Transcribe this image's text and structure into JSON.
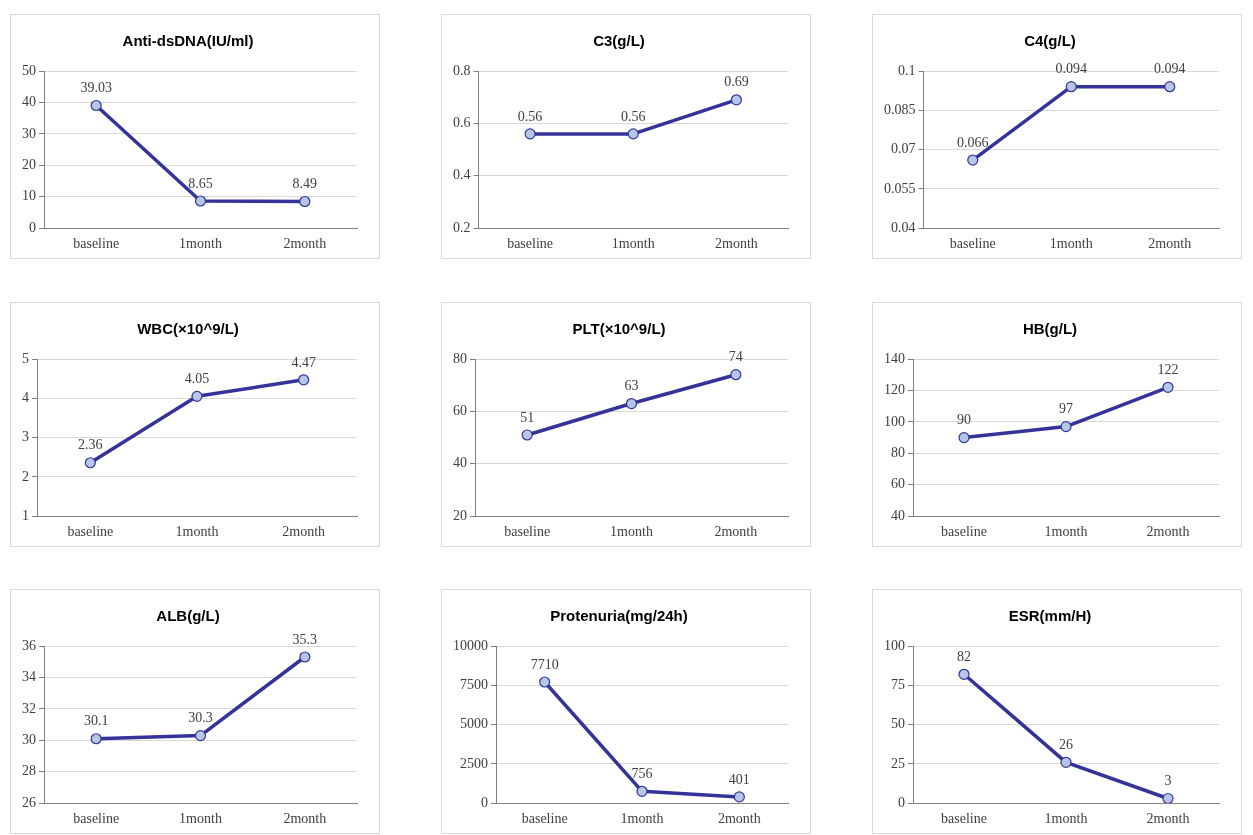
{
  "chart_data": [
    {
      "type": "line",
      "title": "Anti-dsDNA(IU/ml)",
      "categories": [
        "baseline",
        "1month",
        "2month"
      ],
      "series": [
        {
          "color": "#333399",
          "values": [
            39.03,
            8.65,
            8.49
          ]
        }
      ],
      "ylim": [
        0,
        50
      ],
      "yticks": [
        0,
        10,
        20,
        30,
        40,
        50
      ],
      "grid": "y",
      "legend": false,
      "marker": "circle",
      "line_style": "solid",
      "data_labels": true
    },
    {
      "type": "line",
      "title": "C3(g/L)",
      "categories": [
        "baseline",
        "1month",
        "2month"
      ],
      "series": [
        {
          "color": "#333399",
          "values": [
            0.56,
            0.56,
            0.69
          ]
        }
      ],
      "ylim": [
        0.2,
        0.8
      ],
      "yticks": [
        0.2,
        0.4,
        0.6,
        0.8
      ],
      "grid": "y",
      "legend": false,
      "marker": "circle",
      "line_style": "solid",
      "data_labels": true
    },
    {
      "type": "line",
      "title": "C4(g/L)",
      "categories": [
        "baseline",
        "1month",
        "2month"
      ],
      "series": [
        {
          "color": "#333399",
          "values": [
            0.066,
            0.094,
            0.094
          ]
        }
      ],
      "ylim": [
        0.04,
        0.1
      ],
      "yticks": [
        0.04,
        0.055,
        0.07,
        0.085,
        0.1
      ],
      "grid": "y",
      "legend": false,
      "marker": "circle",
      "line_style": "solid",
      "data_labels": true
    },
    {
      "type": "line",
      "title": "WBC(×10^9/L)",
      "categories": [
        "baseline",
        "1month",
        "2month"
      ],
      "series": [
        {
          "color": "#333399",
          "values": [
            2.36,
            4.05,
            4.47
          ]
        }
      ],
      "ylim": [
        1,
        5
      ],
      "yticks": [
        1,
        2,
        3,
        4,
        5
      ],
      "grid": "y",
      "legend": false,
      "marker": "circle",
      "line_style": "solid",
      "data_labels": true
    },
    {
      "type": "line",
      "title": "PLT(×10^9/L)",
      "categories": [
        "baseline",
        "1month",
        "2month"
      ],
      "series": [
        {
          "color": "#333399",
          "values": [
            51,
            63,
            74
          ]
        }
      ],
      "ylim": [
        20,
        80
      ],
      "yticks": [
        20,
        40,
        60,
        80
      ],
      "grid": "y",
      "legend": false,
      "marker": "circle",
      "line_style": "solid",
      "data_labels": true
    },
    {
      "type": "line",
      "title": "HB(g/L)",
      "categories": [
        "baseline",
        "1month",
        "2month"
      ],
      "series": [
        {
          "color": "#333399",
          "values": [
            90,
            97,
            122
          ]
        }
      ],
      "ylim": [
        40,
        140
      ],
      "yticks": [
        40,
        60,
        80,
        100,
        120,
        140
      ],
      "grid": "y",
      "legend": false,
      "marker": "circle",
      "line_style": "solid",
      "data_labels": true
    },
    {
      "type": "line",
      "title": "ALB(g/L)",
      "categories": [
        "baseline",
        "1month",
        "2month"
      ],
      "series": [
        {
          "color": "#333399",
          "values": [
            30.1,
            30.3,
            35.3
          ]
        }
      ],
      "ylim": [
        26,
        36
      ],
      "yticks": [
        26,
        28,
        30,
        32,
        34,
        36
      ],
      "grid": "y",
      "legend": false,
      "marker": "circle",
      "line_style": "solid",
      "data_labels": true
    },
    {
      "type": "line",
      "title": "Protenuria(mg/24h)",
      "categories": [
        "baseline",
        "1month",
        "2month"
      ],
      "series": [
        {
          "color": "#333399",
          "values": [
            7710,
            756,
            401
          ]
        }
      ],
      "ylim": [
        0,
        10000
      ],
      "yticks": [
        0,
        2500,
        5000,
        7500,
        10000
      ],
      "grid": "y",
      "legend": false,
      "marker": "circle",
      "line_style": "solid",
      "data_labels": true
    },
    {
      "type": "line",
      "title": "ESR(mm/H)",
      "categories": [
        "baseline",
        "1month",
        "2month"
      ],
      "series": [
        {
          "color": "#333399",
          "values": [
            82,
            26,
            3
          ]
        }
      ],
      "ylim": [
        0,
        100
      ],
      "yticks": [
        0,
        25,
        50,
        75,
        100
      ],
      "grid": "y",
      "legend": false,
      "marker": "circle",
      "line_style": "solid",
      "data_labels": true
    }
  ]
}
